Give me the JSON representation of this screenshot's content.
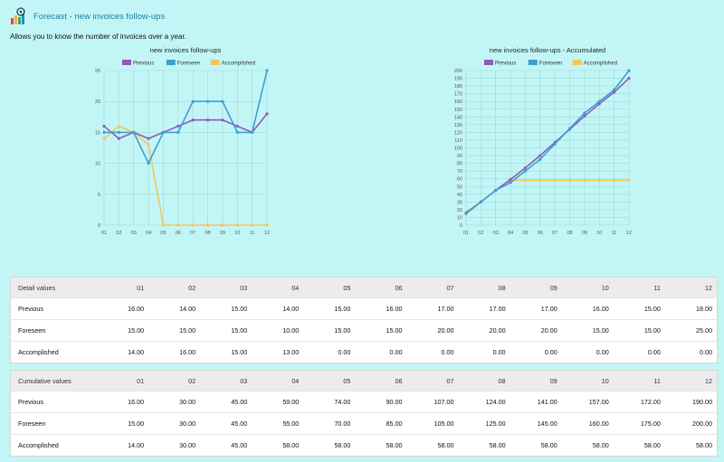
{
  "header": {
    "title": "Forecast - new invoices follow-ups",
    "icon": "bar-chart-target-icon"
  },
  "description": "Allows you to know the number of invoices over a year.",
  "colors": {
    "previous": "#8e5ab8",
    "foreseen": "#3f9fd0",
    "accomplished": "#f5c55a"
  },
  "legend": [
    "Previous",
    "Foreseen",
    "Accomplished"
  ],
  "chart_data": [
    {
      "type": "line",
      "title": "new invoices follow-ups",
      "categories": [
        "01",
        "02",
        "03",
        "04",
        "05",
        "06",
        "07",
        "08",
        "09",
        "10",
        "11",
        "12"
      ],
      "ylim": [
        0,
        25
      ],
      "yticks": [
        0,
        5,
        10,
        15,
        20,
        25
      ],
      "grid": true,
      "legend_position": "top",
      "series": [
        {
          "name": "Previous",
          "values": [
            16,
            14,
            15,
            14,
            15,
            16,
            17,
            17,
            17,
            16,
            15,
            18
          ]
        },
        {
          "name": "Foreseen",
          "values": [
            15,
            15,
            15,
            10,
            15,
            15,
            20,
            20,
            20,
            15,
            15,
            25
          ]
        },
        {
          "name": "Accomplished",
          "values": [
            14,
            16,
            15,
            13,
            0,
            0,
            0,
            0,
            0,
            0,
            0,
            0
          ]
        }
      ]
    },
    {
      "type": "line",
      "title": "new invoices follow-ups - Accumulated",
      "categories": [
        "01",
        "02",
        "03",
        "04",
        "05",
        "06",
        "07",
        "08",
        "09",
        "10",
        "11",
        "12"
      ],
      "ylim": [
        0,
        200
      ],
      "yticks": [
        0,
        10,
        20,
        30,
        40,
        50,
        60,
        70,
        80,
        90,
        100,
        110,
        120,
        130,
        140,
        150,
        160,
        170,
        180,
        190,
        200
      ],
      "grid": true,
      "legend_position": "top",
      "series": [
        {
          "name": "Previous",
          "values": [
            16,
            30,
            45,
            59,
            74,
            90,
            107,
            124,
            141,
            157,
            172,
            190
          ]
        },
        {
          "name": "Foreseen",
          "values": [
            15,
            30,
            45,
            55,
            70,
            85,
            105,
            125,
            145,
            160,
            175,
            200
          ]
        },
        {
          "name": "Accomplished",
          "values": [
            14,
            30,
            45,
            58,
            58,
            58,
            58,
            58,
            58,
            58,
            58,
            58
          ]
        }
      ]
    }
  ],
  "detail_table": {
    "label": "Detail values",
    "columns": [
      "01",
      "02",
      "03",
      "04",
      "05",
      "06",
      "07",
      "08",
      "09",
      "10",
      "11",
      "12"
    ],
    "rows": [
      {
        "label": "Previous",
        "values": [
          "16.00",
          "14.00",
          "15.00",
          "14.00",
          "15.00",
          "16.00",
          "17.00",
          "17.00",
          "17.00",
          "16.00",
          "15.00",
          "18.00"
        ]
      },
      {
        "label": "Foreseen",
        "values": [
          "15.00",
          "15.00",
          "15.00",
          "10.00",
          "15.00",
          "15.00",
          "20.00",
          "20.00",
          "20.00",
          "15.00",
          "15.00",
          "25.00"
        ]
      },
      {
        "label": "Accomplished",
        "values": [
          "14.00",
          "16.00",
          "15.00",
          "13.00",
          "0.00",
          "0.00",
          "0.00",
          "0.00",
          "0.00",
          "0.00",
          "0.00",
          "0.00"
        ]
      }
    ]
  },
  "cumulative_table": {
    "label": "Cumulative values",
    "columns": [
      "01",
      "02",
      "03",
      "04",
      "05",
      "06",
      "07",
      "08",
      "09",
      "10",
      "11",
      "12"
    ],
    "rows": [
      {
        "label": "Previous",
        "values": [
          "16.00",
          "30.00",
          "45.00",
          "59.00",
          "74.00",
          "90.00",
          "107.00",
          "124.00",
          "141.00",
          "157.00",
          "172.00",
          "190.00"
        ]
      },
      {
        "label": "Foreseen",
        "values": [
          "15.00",
          "30.00",
          "45.00",
          "55.00",
          "70.00",
          "85.00",
          "105.00",
          "125.00",
          "145.00",
          "160.00",
          "175.00",
          "200.00"
        ]
      },
      {
        "label": "Accomplished",
        "values": [
          "14.00",
          "30.00",
          "45.00",
          "58.00",
          "58.00",
          "58.00",
          "58.00",
          "58.00",
          "58.00",
          "58.00",
          "58.00",
          "58.00"
        ]
      }
    ]
  }
}
